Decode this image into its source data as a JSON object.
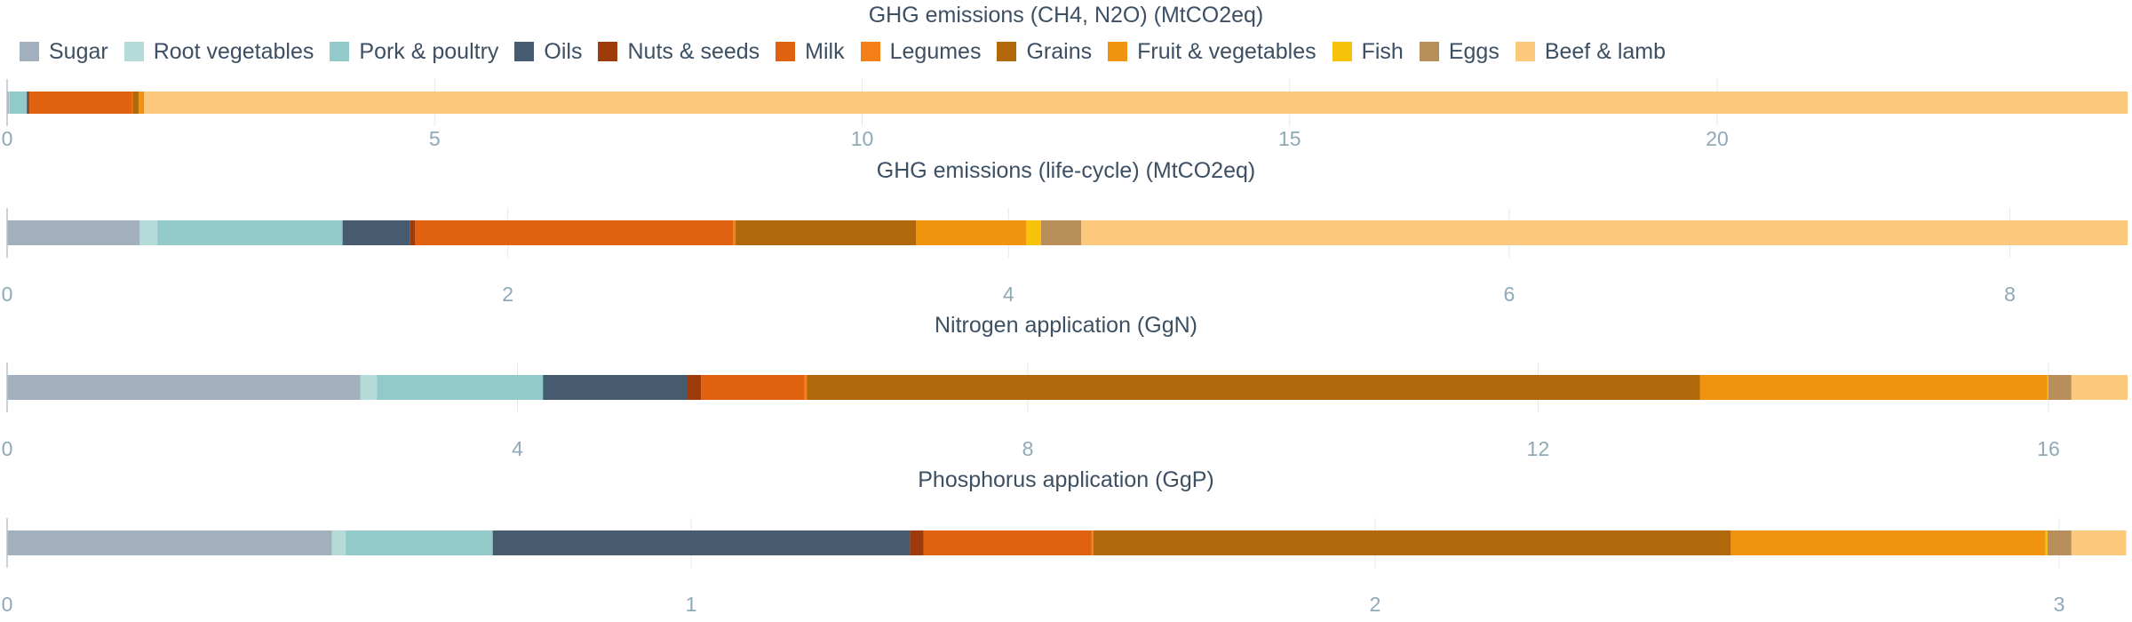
{
  "legend": [
    {
      "name": "Sugar",
      "color": "#a2afbd"
    },
    {
      "name": "Root vegetables",
      "color": "#b5dbd9"
    },
    {
      "name": "Pork & poultry",
      "color": "#92c9c9"
    },
    {
      "name": "Oils",
      "color": "#465b70"
    },
    {
      "name": "Nuts & seeds",
      "color": "#9e3b0b"
    },
    {
      "name": "Milk",
      "color": "#e0610f"
    },
    {
      "name": "Legumes",
      "color": "#f47f16"
    },
    {
      "name": "Grains",
      "color": "#b0680a"
    },
    {
      "name": "Fruit & vegetables",
      "color": "#f0930e"
    },
    {
      "name": "Fish",
      "color": "#f8c10a"
    },
    {
      "name": "Eggs",
      "color": "#b88e5a"
    },
    {
      "name": "Beef & lamb",
      "color": "#fcc97c"
    }
  ],
  "chart_data": [
    {
      "type": "bar",
      "stacked": true,
      "orientation": "horizontal",
      "title": "GHG emissions (CH4, N2O) (MtCO2eq)",
      "xlim": [
        0,
        24.8
      ],
      "ticks": [
        0,
        5,
        10,
        15,
        20
      ],
      "grid": true,
      "series": [
        {
          "name": "Sugar",
          "value": 0.02
        },
        {
          "name": "Root vegetables",
          "value": 0.01
        },
        {
          "name": "Pork & poultry",
          "value": 0.2
        },
        {
          "name": "Oils",
          "value": 0.02
        },
        {
          "name": "Nuts & seeds",
          "value": 0.01
        },
        {
          "name": "Milk",
          "value": 1.2
        },
        {
          "name": "Legumes",
          "value": 0.01
        },
        {
          "name": "Grains",
          "value": 0.07
        },
        {
          "name": "Fruit & vegetables",
          "value": 0.05
        },
        {
          "name": "Fish",
          "value": 0.0
        },
        {
          "name": "Eggs",
          "value": 0.01
        },
        {
          "name": "Beef & lamb",
          "value": 23.2
        }
      ]
    },
    {
      "type": "bar",
      "stacked": true,
      "orientation": "horizontal",
      "title": "GHG emissions (life-cycle) (MtCO2eq)",
      "xlim": [
        0,
        8.47
      ],
      "ticks": [
        0,
        2,
        4,
        6,
        8
      ],
      "grid": true,
      "series": [
        {
          "name": "Sugar",
          "value": 0.53
        },
        {
          "name": "Root vegetables",
          "value": 0.07
        },
        {
          "name": "Pork & poultry",
          "value": 0.74
        },
        {
          "name": "Oils",
          "value": 0.27
        },
        {
          "name": "Nuts & seeds",
          "value": 0.02
        },
        {
          "name": "Milk",
          "value": 1.27
        },
        {
          "name": "Legumes",
          "value": 0.01
        },
        {
          "name": "Grains",
          "value": 0.72
        },
        {
          "name": "Fruit & vegetables",
          "value": 0.44
        },
        {
          "name": "Fish",
          "value": 0.06
        },
        {
          "name": "Eggs",
          "value": 0.16
        },
        {
          "name": "Beef & lamb",
          "value": 4.18
        }
      ]
    },
    {
      "type": "bar",
      "stacked": true,
      "orientation": "horizontal",
      "title": "Nitrogen application (GgN)",
      "xlim": [
        0,
        16.62
      ],
      "ticks": [
        0,
        4,
        8,
        12,
        16
      ],
      "grid": true,
      "series": [
        {
          "name": "Sugar",
          "value": 2.77
        },
        {
          "name": "Root vegetables",
          "value": 0.13
        },
        {
          "name": "Pork & poultry",
          "value": 1.3
        },
        {
          "name": "Oils",
          "value": 1.13
        },
        {
          "name": "Nuts & seeds",
          "value": 0.11
        },
        {
          "name": "Milk",
          "value": 0.81
        },
        {
          "name": "Legumes",
          "value": 0.02
        },
        {
          "name": "Grains",
          "value": 7.0
        },
        {
          "name": "Fruit & vegetables",
          "value": 2.72
        },
        {
          "name": "Fish",
          "value": 0.01
        },
        {
          "name": "Eggs",
          "value": 0.18
        },
        {
          "name": "Beef & lamb",
          "value": 0.44
        }
      ]
    },
    {
      "type": "bar",
      "stacked": true,
      "orientation": "horizontal",
      "title": "Phosphorus application (GgP)",
      "xlim": [
        0,
        3.1
      ],
      "ticks": [
        0,
        1,
        2,
        3
      ],
      "grid": true,
      "series": [
        {
          "name": "Sugar",
          "value": 0.475
        },
        {
          "name": "Root vegetables",
          "value": 0.02
        },
        {
          "name": "Pork & poultry",
          "value": 0.215
        },
        {
          "name": "Oils",
          "value": 0.61
        },
        {
          "name": "Nuts & seeds",
          "value": 0.02
        },
        {
          "name": "Milk",
          "value": 0.245
        },
        {
          "name": "Legumes",
          "value": 0.003
        },
        {
          "name": "Grains",
          "value": 0.932
        },
        {
          "name": "Fruit & vegetables",
          "value": 0.46
        },
        {
          "name": "Fish",
          "value": 0.003
        },
        {
          "name": "Eggs",
          "value": 0.035
        },
        {
          "name": "Beef & lamb",
          "value": 0.08
        }
      ]
    }
  ]
}
